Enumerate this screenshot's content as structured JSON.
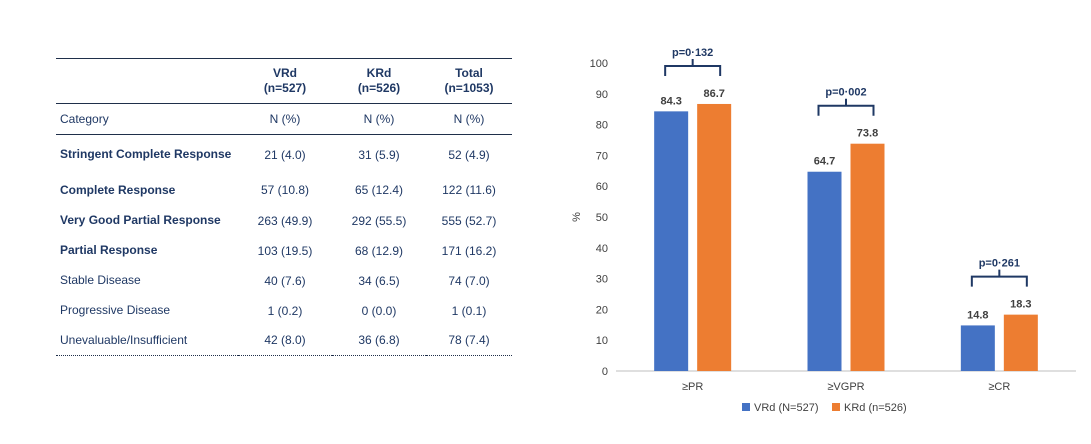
{
  "table": {
    "headers": [
      {
        "line1": "",
        "line2": ""
      },
      {
        "line1": "VRd",
        "line2": "(n=527)"
      },
      {
        "line1": "KRd",
        "line2": "(n=526)"
      },
      {
        "line1": "Total",
        "line2": "(n=1053)"
      }
    ],
    "subheader": [
      "Category",
      "N (%)",
      "N (%)",
      "N (%)"
    ],
    "rows": [
      {
        "category": "Stringent Complete Response",
        "vrd": "21 (4.0)",
        "krd": "31 (5.9)",
        "total": "52 (4.9)"
      },
      {
        "category": "Complete Response",
        "vrd": "57 (10.8)",
        "krd": "65 (12.4)",
        "total": "122 (11.6)"
      },
      {
        "category": "Very Good Partial Response",
        "vrd": "263 (49.9)",
        "krd": "292 (55.5)",
        "total": "555 (52.7)"
      },
      {
        "category": "Partial Response",
        "vrd": "103 (19.5)",
        "krd": "68 (12.9)",
        "total": "171 (16.2)"
      },
      {
        "category": "Stable Disease",
        "vrd": "40 (7.6)",
        "krd": "34 (6.5)",
        "total": "74 (7.0)"
      },
      {
        "category": "Progressive Disease",
        "vrd": "1 (0.2)",
        "krd": "0 (0.0)",
        "total": "1 (0.1)"
      },
      {
        "category": "Unevaluable/Insufficient",
        "vrd": "42 (8.0)",
        "krd": "36 (6.8)",
        "total": "78 (7.4)"
      }
    ]
  },
  "chart_data": {
    "type": "bar",
    "categories": [
      "≥PR",
      "≥VGPR",
      "≥CR"
    ],
    "series": [
      {
        "name": "VRd (N=527)",
        "values": [
          84.3,
          64.7,
          14.8
        ],
        "labels": [
          "84.3",
          "64.7",
          "14.8"
        ],
        "color": "#4472c4"
      },
      {
        "name": "KRd (n=526)",
        "values": [
          86.7,
          73.8,
          18.3
        ],
        "labels": [
          "86.7",
          "73.8",
          "18.3"
        ],
        "color": "#ed7d31"
      }
    ],
    "annotations": [
      "p=0·132",
      "p=0·002",
      "p=0·261"
    ],
    "ylabel": "%",
    "ylim": [
      0,
      100
    ],
    "yticks": [
      "0",
      "10",
      "20",
      "30",
      "40",
      "50",
      "60",
      "70",
      "80",
      "90",
      "100"
    ],
    "legend": "bottom",
    "grid": false
  }
}
